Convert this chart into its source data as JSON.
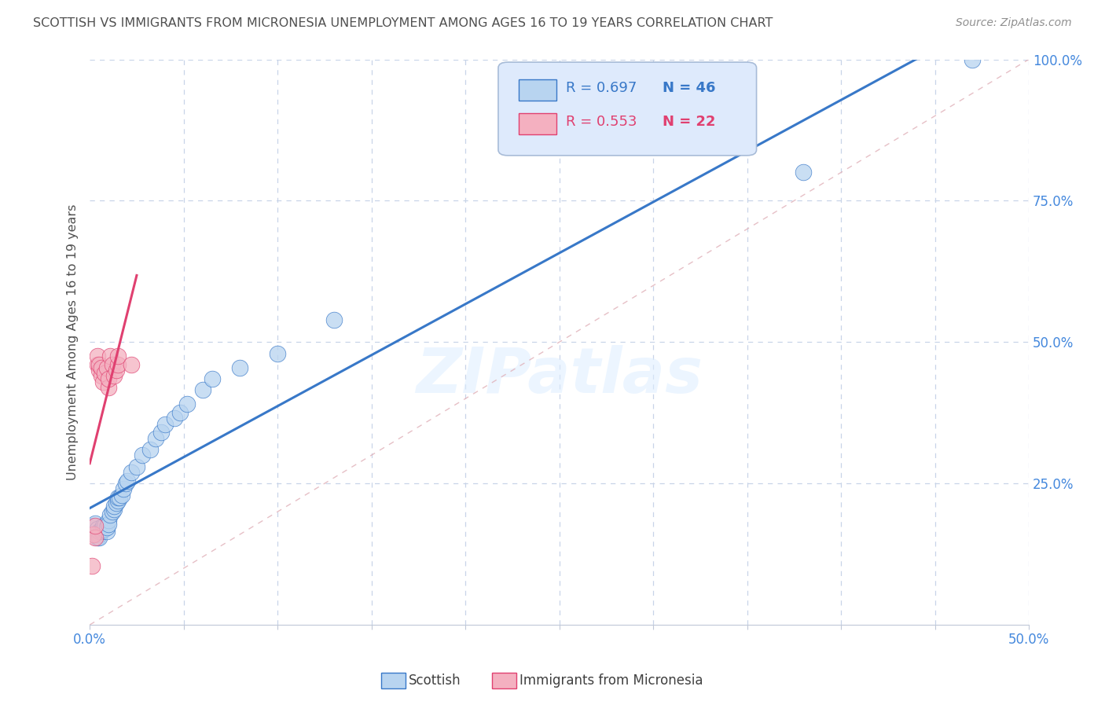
{
  "title": "SCOTTISH VS IMMIGRANTS FROM MICRONESIA UNEMPLOYMENT AMONG AGES 16 TO 19 YEARS CORRELATION CHART",
  "source": "Source: ZipAtlas.com",
  "ylabel": "Unemployment Among Ages 16 to 19 years",
  "xlim": [
    0.0,
    0.5
  ],
  "ylim": [
    0.0,
    1.0
  ],
  "scottish_r": 0.697,
  "scottish_n": 46,
  "micronesia_r": 0.553,
  "micronesia_n": 22,
  "scottish_color": "#b8d4f0",
  "micronesia_color": "#f4b0c0",
  "scottish_line_color": "#3878c8",
  "micronesia_line_color": "#e04070",
  "watermark": "ZIPatlas",
  "background_color": "#ffffff",
  "grid_color": "#c8d4e8",
  "title_color": "#505050",
  "tick_color": "#4488dd",
  "scottish_x": [
    0.002,
    0.003,
    0.004,
    0.004,
    0.005,
    0.005,
    0.005,
    0.006,
    0.006,
    0.007,
    0.007,
    0.008,
    0.008,
    0.009,
    0.009,
    0.01,
    0.01,
    0.011,
    0.012,
    0.013,
    0.013,
    0.014,
    0.015,
    0.015,
    0.016,
    0.017,
    0.018,
    0.019,
    0.02,
    0.022,
    0.025,
    0.028,
    0.032,
    0.035,
    0.038,
    0.04,
    0.045,
    0.048,
    0.052,
    0.06,
    0.065,
    0.08,
    0.1,
    0.13,
    0.38,
    0.47
  ],
  "scottish_y": [
    0.175,
    0.18,
    0.155,
    0.17,
    0.16,
    0.155,
    0.165,
    0.165,
    0.168,
    0.17,
    0.175,
    0.17,
    0.175,
    0.165,
    0.172,
    0.185,
    0.178,
    0.195,
    0.2,
    0.205,
    0.21,
    0.215,
    0.22,
    0.225,
    0.225,
    0.23,
    0.24,
    0.25,
    0.255,
    0.27,
    0.28,
    0.3,
    0.31,
    0.33,
    0.34,
    0.355,
    0.365,
    0.375,
    0.39,
    0.415,
    0.435,
    0.455,
    0.48,
    0.54,
    0.8,
    1.0
  ],
  "micronesia_x": [
    0.001,
    0.002,
    0.003,
    0.003,
    0.004,
    0.004,
    0.005,
    0.005,
    0.006,
    0.006,
    0.007,
    0.008,
    0.009,
    0.01,
    0.01,
    0.011,
    0.012,
    0.013,
    0.014,
    0.015,
    0.015,
    0.022
  ],
  "micronesia_y": [
    0.105,
    0.16,
    0.155,
    0.175,
    0.46,
    0.475,
    0.45,
    0.46,
    0.44,
    0.455,
    0.43,
    0.445,
    0.455,
    0.42,
    0.435,
    0.475,
    0.46,
    0.44,
    0.45,
    0.46,
    0.475,
    0.46
  ]
}
